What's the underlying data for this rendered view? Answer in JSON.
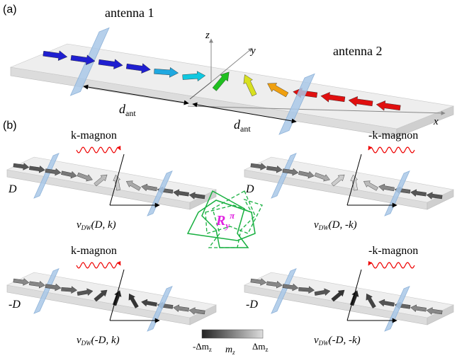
{
  "panel_a": {
    "label": "(a)",
    "antenna_1": "antenna 1",
    "antenna_2": "antenna 2",
    "axes": {
      "x": "x",
      "y": "y",
      "z": "z"
    },
    "distance": {
      "symbol": "d",
      "subscript": "ant"
    }
  },
  "panel_b": {
    "label": "(b)",
    "cases": [
      {
        "magnon": "k-magnon",
        "dmi": "D",
        "velocity": {
          "symbol": "v",
          "subscript": "DW",
          "args": "(D, k)"
        }
      },
      {
        "magnon": "-k-magnon",
        "dmi": "D",
        "velocity": {
          "symbol": "v",
          "subscript": "DW",
          "args": "(D, -k)"
        }
      },
      {
        "magnon": "k-magnon",
        "dmi": "-D",
        "velocity": {
          "symbol": "v",
          "subscript": "DW",
          "args": "(-D, k)"
        }
      },
      {
        "magnon": "-k-magnon",
        "dmi": "-D",
        "velocity": {
          "symbol": "v",
          "subscript": "DW",
          "args": "(-D, -k)"
        }
      }
    ],
    "rotation": {
      "symbol": "R",
      "subscript": "y",
      "superscript": "π"
    },
    "colorbar": {
      "min": {
        "text": "-Δm",
        "subscript": "z"
      },
      "label": {
        "text": "m",
        "subscript": "z"
      },
      "max": {
        "text": "Δm",
        "subscript": "z"
      }
    }
  }
}
